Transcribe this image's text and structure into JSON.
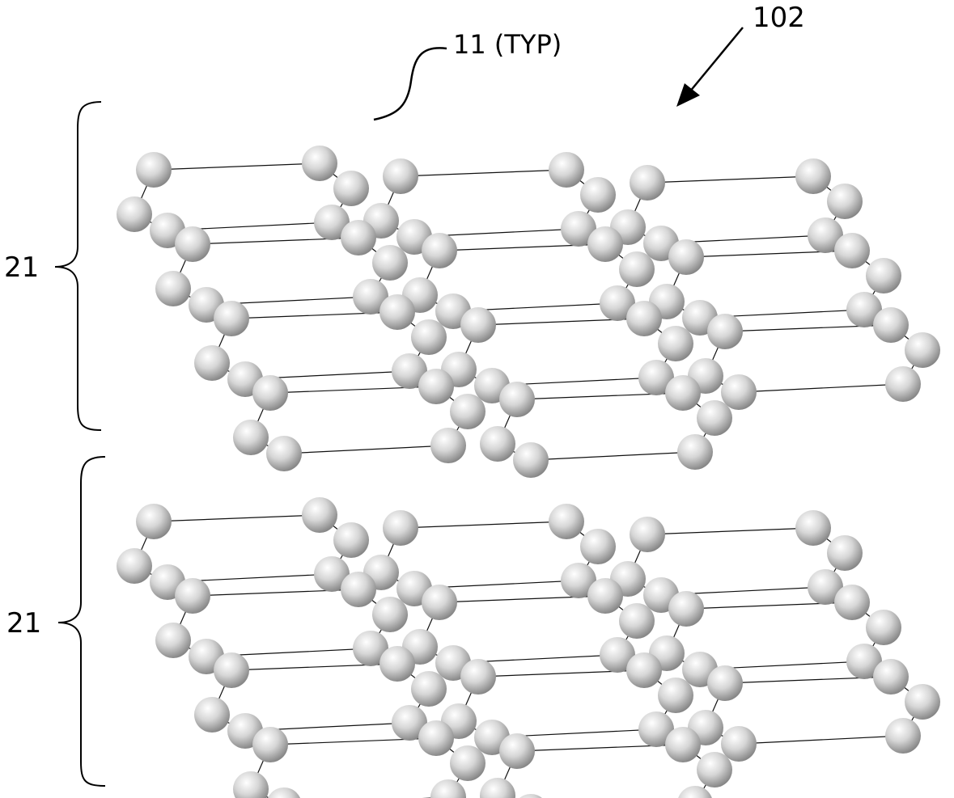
{
  "figure": {
    "ref_numeral": "102",
    "atom_label": "11 (TYP)",
    "layers": [
      {
        "label": "21"
      },
      {
        "label": "21"
      }
    ]
  },
  "colors": {
    "background": "#ffffff",
    "line": "#111111",
    "atom_light": "#ffffff",
    "atom_dark": "#7a7a7a"
  }
}
